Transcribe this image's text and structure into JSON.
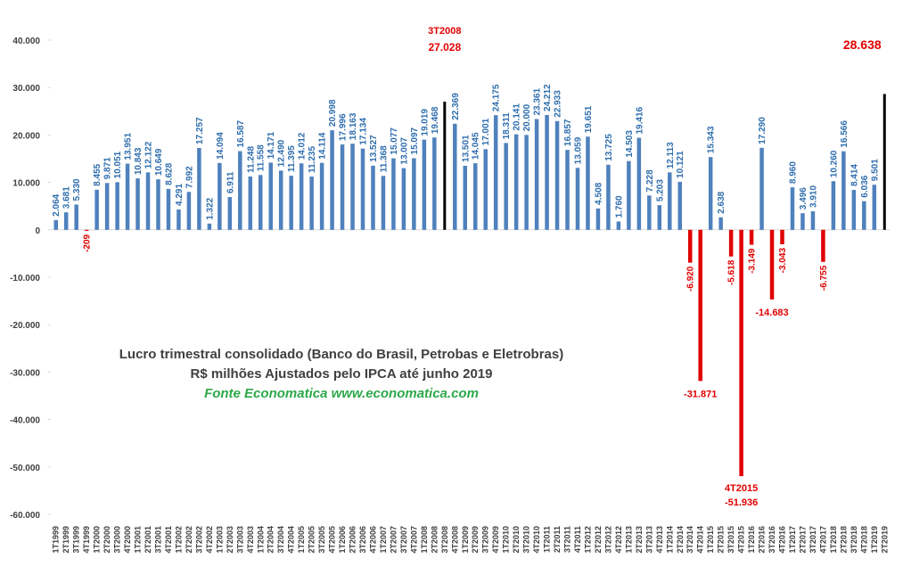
{
  "chart_data": {
    "type": "bar",
    "title": "Lucro trimestral consolidado  (Banco do Brasil, Petrobas e Eletrobras)",
    "subtitle": "R$ milhões Ajustados pelo IPCA até junho 2019",
    "source": "Fonte Economatica www.economatica.com",
    "categories": [
      "1T1999",
      "2T1999",
      "3T1999",
      "4T1999",
      "1T2000",
      "2T2000",
      "3T2000",
      "4T2000",
      "1T2001",
      "2T2001",
      "3T2001",
      "4T2001",
      "1T2002",
      "2T2002",
      "3T2002",
      "4T2002",
      "1T2003",
      "2T2003",
      "3T2003",
      "4T2003",
      "1T2004",
      "2T2004",
      "3T2004",
      "4T2004",
      "1T2005",
      "2T2005",
      "3T2005",
      "4T2005",
      "1T2006",
      "2T2006",
      "3T2006",
      "4T2006",
      "1T2007",
      "2T2007",
      "3T2007",
      "4T2007",
      "1T2008",
      "2T2008",
      "3T2008",
      "4T2008",
      "1T2009",
      "2T2009",
      "3T2009",
      "4T2009",
      "1T2010",
      "2T2010",
      "3T2010",
      "4T2010",
      "1T2011",
      "2T2011",
      "3T2011",
      "4T2011",
      "1T2012",
      "2T2012",
      "3T2012",
      "4T2012",
      "1T2013",
      "2T2013",
      "3T2013",
      "4T2013",
      "1T2014",
      "2T2014",
      "3T2014",
      "4T2014",
      "1T2015",
      "2T2015",
      "3T2015",
      "4T2015",
      "1T2016",
      "2T2016",
      "3T2016",
      "4T2016",
      "1T2017",
      "2T2017",
      "3T2017",
      "4T2017",
      "1T2018",
      "2T2018",
      "3T2018",
      "4T2018",
      "1T2019",
      "2T2019"
    ],
    "values": [
      2064,
      3681,
      5330,
      -209,
      8455,
      9871,
      10051,
      13951,
      10843,
      12122,
      10649,
      8628,
      4291,
      7992,
      17257,
      1322,
      14094,
      6911,
      16587,
      11248,
      11558,
      14171,
      12490,
      11395,
      14012,
      11235,
      14114,
      20998,
      17996,
      18163,
      17134,
      13527,
      11368,
      15077,
      13007,
      15097,
      19019,
      19468,
      27028,
      22369,
      13501,
      14045,
      17001,
      24175,
      18311,
      20141,
      20000,
      23361,
      24212,
      22933,
      16857,
      13059,
      19651,
      4508,
      13725,
      1760,
      14503,
      19416,
      7228,
      5203,
      12113,
      10121,
      -6920,
      -31871,
      15343,
      2638,
      -5618,
      -51936,
      -3149,
      17290,
      -14683,
      -3043,
      8960,
      3496,
      3910,
      -6755,
      10260,
      16566,
      8414,
      6036,
      9501,
      28638
    ],
    "value_labels": [
      "2.064",
      "3.681",
      "5.330",
      "-209",
      "8.455",
      "9.871",
      "10.051",
      "13.951",
      "10.843",
      "12.122",
      "10.649",
      "8.628",
      "4.291",
      "7.992",
      "17.257",
      "1.322",
      "14.094",
      "6.911",
      "16.587",
      "11.248",
      "11.558",
      "14.171",
      "12.490",
      "11.395",
      "14.012",
      "11.235",
      "14.114",
      "20.998",
      "17.996",
      "18.163",
      "17.134",
      "13.527",
      "11.368",
      "15.077",
      "13.007",
      "15.097",
      "19.019",
      "19.468",
      "27.028",
      "22.369",
      "13.501",
      "14.045",
      "17.001",
      "24.175",
      "18.311",
      "20.141",
      "20.000",
      "23.361",
      "24.212",
      "22.933",
      "16.857",
      "13.059",
      "19.651",
      "4.508",
      "13.725",
      "1.760",
      "14.503",
      "19.416",
      "7.228",
      "5.203",
      "12.113",
      "10.121",
      "-6.920",
      "-31.871",
      "15.343",
      "2.638",
      "-5.618",
      "-51.936",
      "-3.149",
      "17.290",
      "-14.683",
      "-3.043",
      "8.960",
      "3.496",
      "3.910",
      "-6.755",
      "10.260",
      "16.566",
      "8.414",
      "6.036",
      "9.501",
      "28.638"
    ],
    "color": "#4f81bd",
    "negative_color": "#e00000",
    "highlight_color": "#000000",
    "highlight": [
      "3T2008",
      "2T2019"
    ],
    "annotations": [
      "3T2008",
      "4T2015"
    ],
    "ylim": [
      -60000,
      40000
    ],
    "yticks": [
      {
        "value": -60000,
        "label": "-60.000"
      },
      {
        "value": -50000,
        "label": "-50.000"
      },
      {
        "value": -40000,
        "label": "-40.000"
      },
      {
        "value": -30000,
        "label": "-30.000"
      },
      {
        "value": -20000,
        "label": "-20.000"
      },
      {
        "value": -10000,
        "label": "-10.000"
      },
      0,
      {
        "value": 10000,
        "label": "10.000"
      },
      {
        "value": 20000,
        "label": "20.000"
      },
      {
        "value": 30000,
        "label": "30.000"
      },
      {
        "value": 40000,
        "label": "40.000"
      }
    ],
    "grid": false
  }
}
